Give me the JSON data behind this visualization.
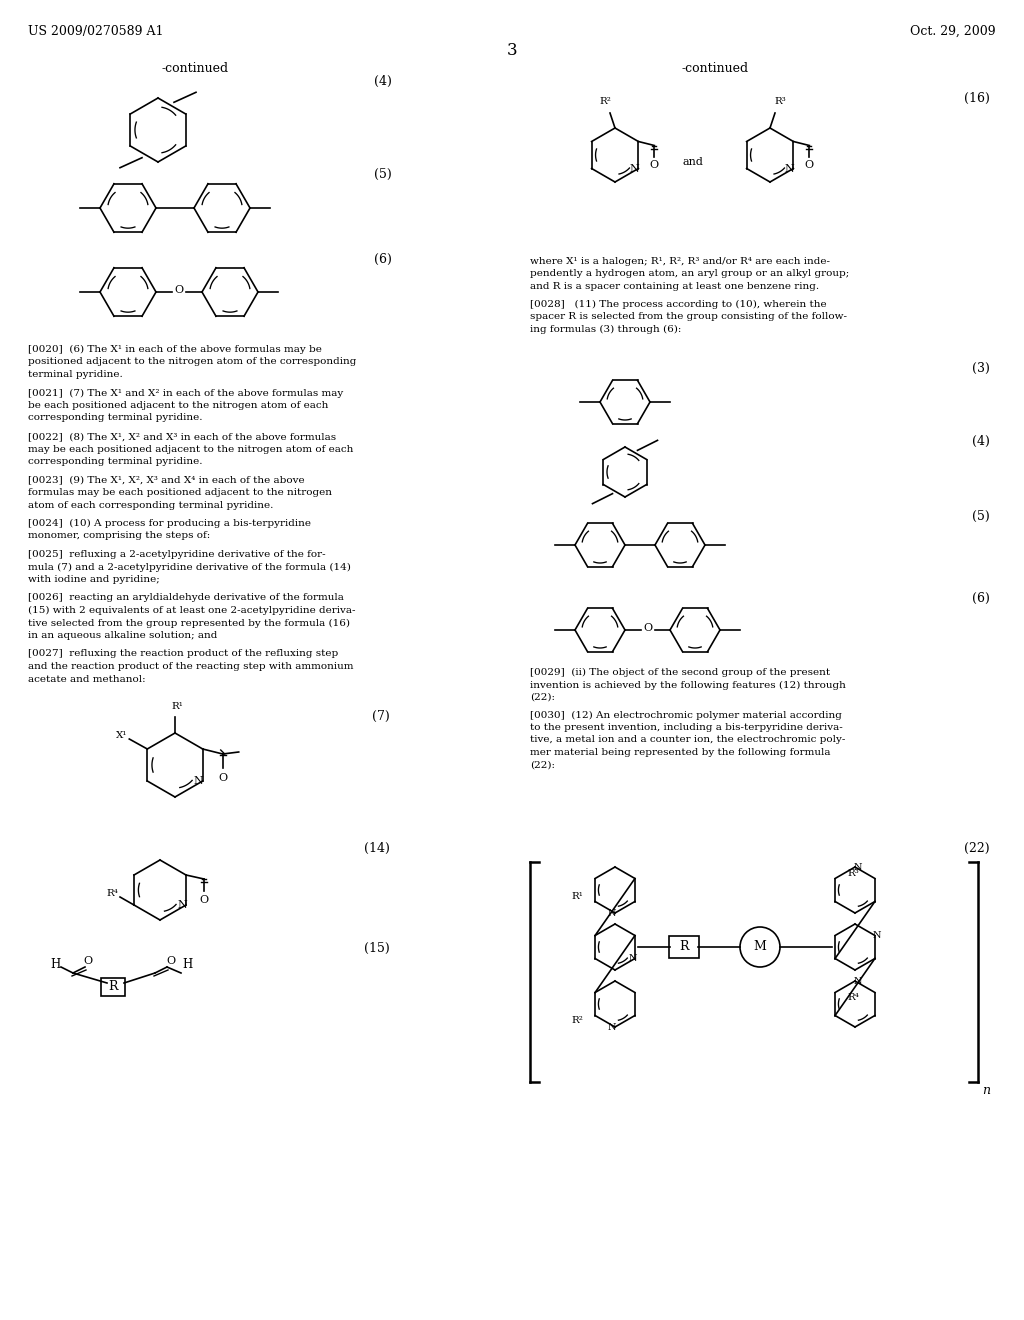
{
  "background_color": "#ffffff",
  "page_number": "3",
  "header_left": "US 2009/0270589 A1",
  "header_right": "Oct. 29, 2009"
}
